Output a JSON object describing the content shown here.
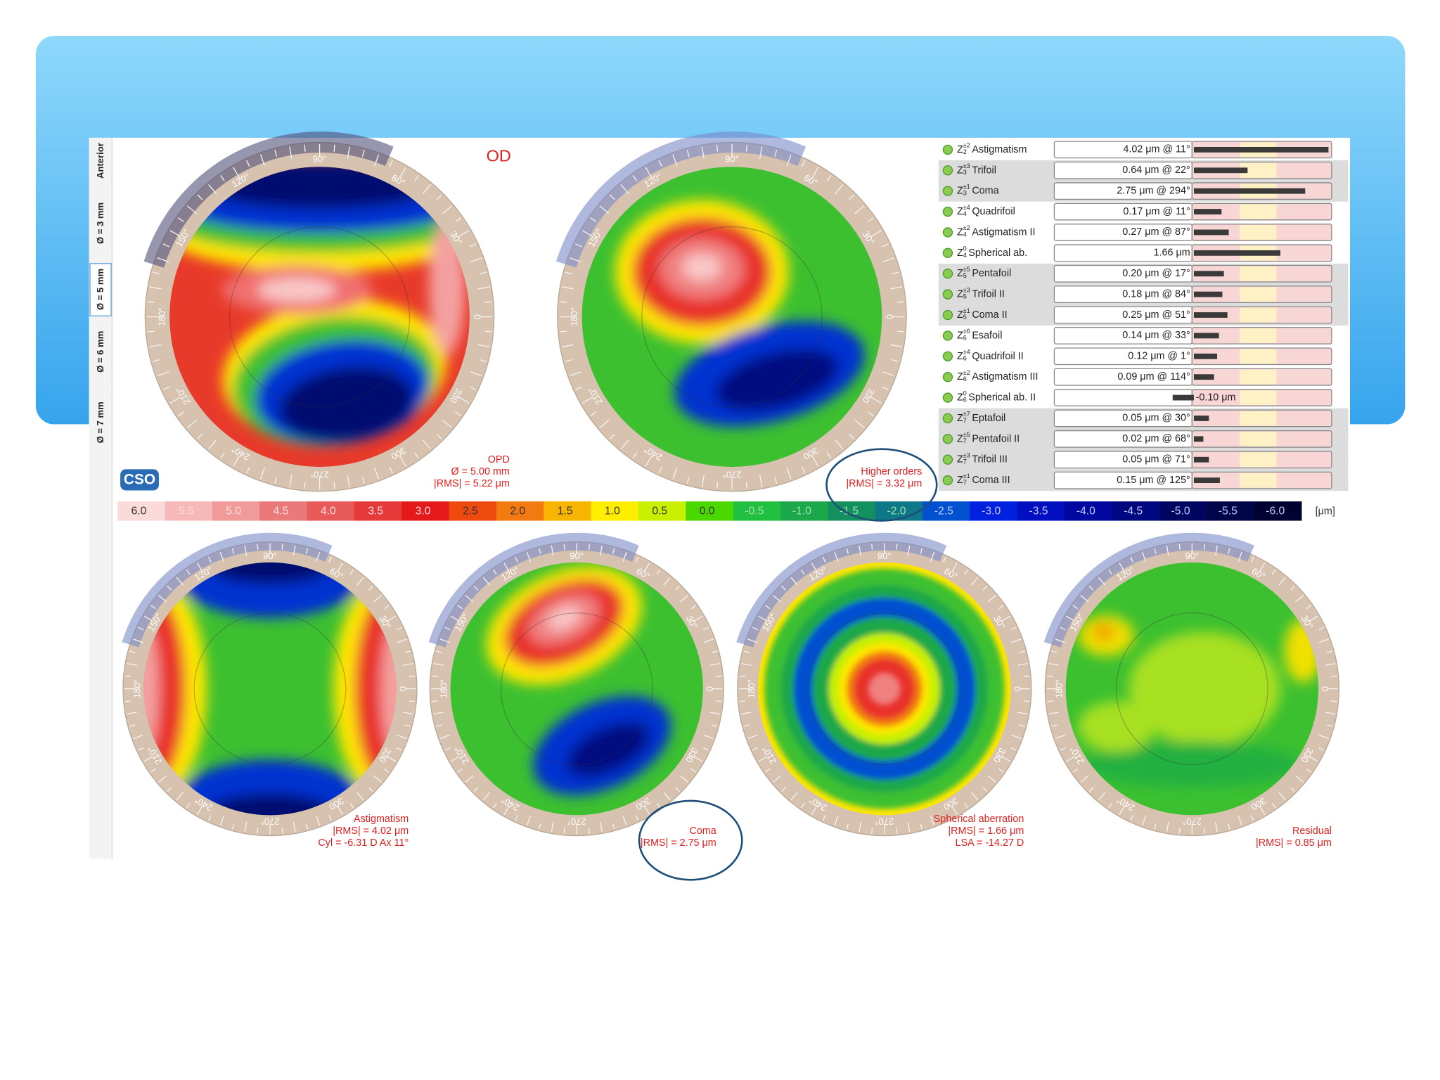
{
  "sidebar_tabs": [
    "Anterior",
    "Ø = 3 mm",
    "Ø = 5 mm",
    "Ø = 6 mm",
    "Ø = 7 mm"
  ],
  "eye": "OD",
  "logo": "CSO",
  "angle_labels": [
    "90°",
    "60°",
    "30°",
    "0",
    "330",
    "300",
    "270°",
    "240°",
    "210°",
    "180°",
    "150°",
    "120°"
  ],
  "maps": [
    {
      "lines": [
        "OPD",
        "Ø = 5.00 mm",
        "|RMS| = 5.22 μm"
      ]
    },
    {
      "lines": [
        "Higher orders",
        "|RMS| = 3.32 μm"
      ]
    },
    {
      "lines": [
        "Astigmatism",
        "|RMS| = 4.02 μm",
        "Cyl = -6.31 D Ax 11°"
      ]
    },
    {
      "lines": [
        "Coma",
        "|RMS| = 2.75 μm"
      ]
    },
    {
      "lines": [
        "Spherical aberration",
        "|RMS| = 1.66 μm",
        "LSA = -14.27 D"
      ]
    },
    {
      "lines": [
        "Residual",
        "|RMS| = 0.85 μm"
      ]
    }
  ],
  "zernike_table": {
    "symbol": "Z",
    "rows": [
      {
        "order": "2",
        "freq": "±2",
        "name": "Astigmatism",
        "value": 4.02,
        "value_label": "4.02 μm @ 11°"
      },
      {
        "order": "3",
        "freq": "±3",
        "name": "Trifoil",
        "value": 0.64,
        "value_label": "0.64 μm @ 22°"
      },
      {
        "order": "3",
        "freq": "±1",
        "name": "Coma",
        "value": 2.75,
        "value_label": "2.75 μm @ 294°"
      },
      {
        "order": "4",
        "freq": "±4",
        "name": "Quadrifoil",
        "value": 0.17,
        "value_label": "0.17 μm @ 11°"
      },
      {
        "order": "4",
        "freq": "±2",
        "name": "Astigmatism II",
        "value": 0.27,
        "value_label": "0.27 μm @ 87°"
      },
      {
        "order": "4",
        "freq": "0",
        "name": "Spherical ab.",
        "value": 1.66,
        "value_label": "1.66 μm"
      },
      {
        "order": "5",
        "freq": "±5",
        "name": "Pentafoil",
        "value": 0.2,
        "value_label": "0.20 μm @ 17°"
      },
      {
        "order": "5",
        "freq": "±3",
        "name": "Trifoil II",
        "value": 0.18,
        "value_label": "0.18 μm @ 84°"
      },
      {
        "order": "5",
        "freq": "±1",
        "name": "Coma II",
        "value": 0.25,
        "value_label": "0.25 μm @ 51°"
      },
      {
        "order": "6",
        "freq": "±6",
        "name": "Esafoil",
        "value": 0.14,
        "value_label": "0.14 μm @ 33°"
      },
      {
        "order": "6",
        "freq": "±4",
        "name": "Quadrifoil II",
        "value": 0.12,
        "value_label": "0.12 μm @ 1°"
      },
      {
        "order": "6",
        "freq": "±2",
        "name": "Astigmatism III",
        "value": 0.09,
        "value_label": "0.09 μm @ 114°"
      },
      {
        "order": "6",
        "freq": "0",
        "name": "Spherical ab. II",
        "value": -0.1,
        "value_label": "-0.10 μm"
      },
      {
        "order": "7",
        "freq": "±7",
        "name": "Eptafoil",
        "value": 0.05,
        "value_label": "0.05 μm @ 30°"
      },
      {
        "order": "7",
        "freq": "±5",
        "name": "Pentafoil II",
        "value": 0.02,
        "value_label": "0.02 μm @ 68°"
      },
      {
        "order": "7",
        "freq": "±3",
        "name": "Trifoil III",
        "value": 0.05,
        "value_label": "0.05 μm @ 71°"
      },
      {
        "order": "7",
        "freq": "±1",
        "name": "Coma III",
        "value": 0.15,
        "value_label": "0.15 μm @ 125°"
      }
    ]
  },
  "color_scale": {
    "labels": [
      "6.0",
      "5.5",
      "5.0",
      "4.5",
      "4.0",
      "3.5",
      "3.0",
      "2.5",
      "2.0",
      "1.5",
      "1.0",
      "0.5",
      "0.0",
      "-0.5",
      "-1.0",
      "-1.5",
      "-2.0",
      "-2.5",
      "-3.0",
      "-3.5",
      "-4.0",
      "-4.5",
      "-5.0",
      "-5.5",
      "-6.0"
    ],
    "colors": [
      "#fbdada",
      "#f6b8b8",
      "#f09a9a",
      "#ea7a7a",
      "#e85a5a",
      "#e63a3a",
      "#e41a1a",
      "#ee4a10",
      "#f27a10",
      "#f7b400",
      "#ffee00",
      "#c8f000",
      "#4ad800",
      "#22c040",
      "#1aa84a",
      "#149060",
      "#0d7888",
      "#0050d0",
      "#0020e0",
      "#0010c0",
      "#0008a0",
      "#000880",
      "#000660",
      "#000448",
      "#000230"
    ],
    "unit": "[μm]"
  }
}
